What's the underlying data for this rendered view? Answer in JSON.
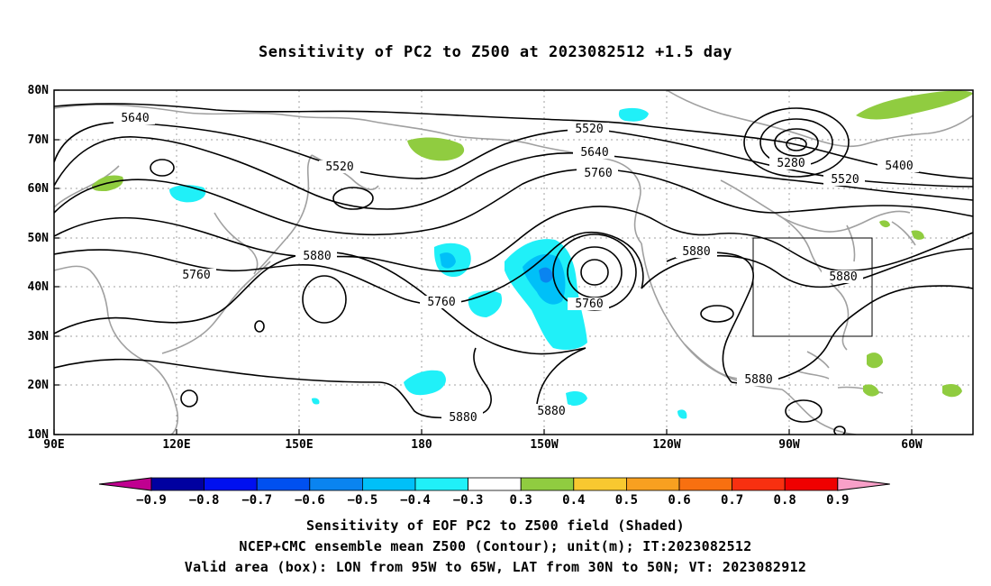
{
  "title": "Sensitivity of PC2 to Z500 at 2023082512 +1.5 day",
  "lat_labels": [
    "80N",
    "70N",
    "60N",
    "50N",
    "40N",
    "30N",
    "20N",
    "10N"
  ],
  "lon_labels": [
    "90E",
    "120E",
    "150E",
    "180",
    "150W",
    "120W",
    "90W",
    "60W"
  ],
  "contour_labels": [
    "5640",
    "5520",
    "5520",
    "5640",
    "5760",
    "5280",
    "5400",
    "5520",
    "5880",
    "5760",
    "5880",
    "5760",
    "5760",
    "5880",
    "5880",
    "5880"
  ],
  "colorbar": {
    "labels": [
      "−0.9",
      "−0.8",
      "−0.7",
      "−0.6",
      "−0.5",
      "−0.4",
      "−0.3",
      "0.3",
      "0.4",
      "0.5",
      "0.6",
      "0.7",
      "0.8",
      "0.9"
    ],
    "colors": [
      "#c00090",
      "#0000a0",
      "#0010f0",
      "#0050f0",
      "#0a84f0",
      "#00c0f8",
      "#20f0f8",
      "#ffffff",
      "#90cc40",
      "#f8c830",
      "#f8a020",
      "#f87010",
      "#f83010",
      "#f00000",
      "#f8a0c8"
    ]
  },
  "colors": {
    "contour": "#000000",
    "coastline": "#a0a0a0",
    "gridline": "#a0a0a0",
    "positive": "#90cc40",
    "negative_light": "#20f0f8",
    "negative_mid": "#00c0f8",
    "negative_dark": "#0a84f0"
  },
  "captions": [
    "Sensitivity of EOF PC2 to Z500 field (Shaded)",
    "NCEP+CMC ensemble mean Z500 (Contour); unit(m); IT:2023082512",
    "Valid area (box): LON from 95W to 65W, LAT from 30N to 50N; VT: 2023082912"
  ]
}
